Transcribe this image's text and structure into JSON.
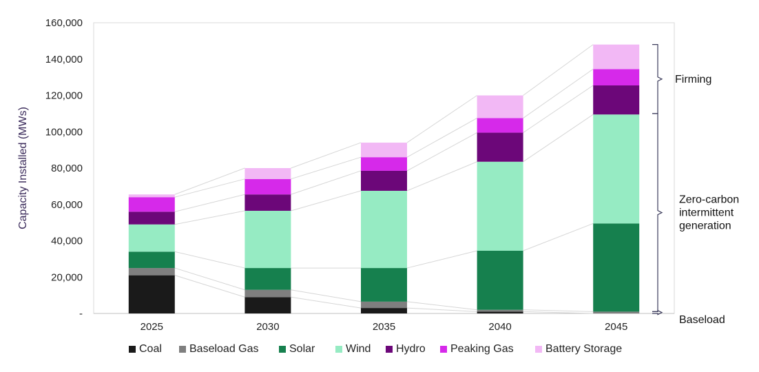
{
  "chart_data": {
    "type": "bar",
    "stacked": true,
    "categories": [
      "2025",
      "2030",
      "2035",
      "2040",
      "2045"
    ],
    "ylabel": "Capacity Installed (MWs)",
    "ylim": [
      0,
      160000
    ],
    "yticks": [
      0,
      20000,
      40000,
      60000,
      80000,
      100000,
      120000,
      140000,
      160000
    ],
    "ytick_labels": [
      "-",
      "20,000",
      "40,000",
      "60,000",
      "80,000",
      "100,000",
      "120,000",
      "140,000",
      "160,000"
    ],
    "grid": false,
    "legend_position": "bottom",
    "series": [
      {
        "name": "Coal",
        "color": "#1a1a1a",
        "values": [
          21000,
          9000,
          3000,
          1000,
          0
        ]
      },
      {
        "name": "Baseload Gas",
        "color": "#7f7f7f",
        "values": [
          4000,
          4000,
          3500,
          1000,
          1000
        ]
      },
      {
        "name": "Solar",
        "color": "#16804e",
        "values": [
          9000,
          12000,
          18500,
          32500,
          48500
        ]
      },
      {
        "name": "Wind",
        "color": "#96ebc3",
        "values": [
          15000,
          31500,
          42500,
          49000,
          60000
        ]
      },
      {
        "name": "Hydro",
        "color": "#6c0779",
        "values": [
          7000,
          9000,
          11000,
          16000,
          16000
        ]
      },
      {
        "name": "Peaking Gas",
        "color": "#d629ea",
        "values": [
          8000,
          8500,
          7500,
          8000,
          9000
        ]
      },
      {
        "name": "Battery Storage",
        "color": "#f2b8f5",
        "values": [
          1500,
          6000,
          8000,
          12500,
          13500
        ]
      }
    ],
    "annotations": [
      {
        "label": "Firming",
        "from": 110000,
        "to": 148000
      },
      {
        "label": "Zero-carbon intermittent generation",
        "lines": [
          "Zero-carbon",
          "intermittent",
          "generation"
        ],
        "from": 1000,
        "to": 110000
      },
      {
        "label": "Baseload",
        "from": 0,
        "to": 1000
      }
    ]
  }
}
